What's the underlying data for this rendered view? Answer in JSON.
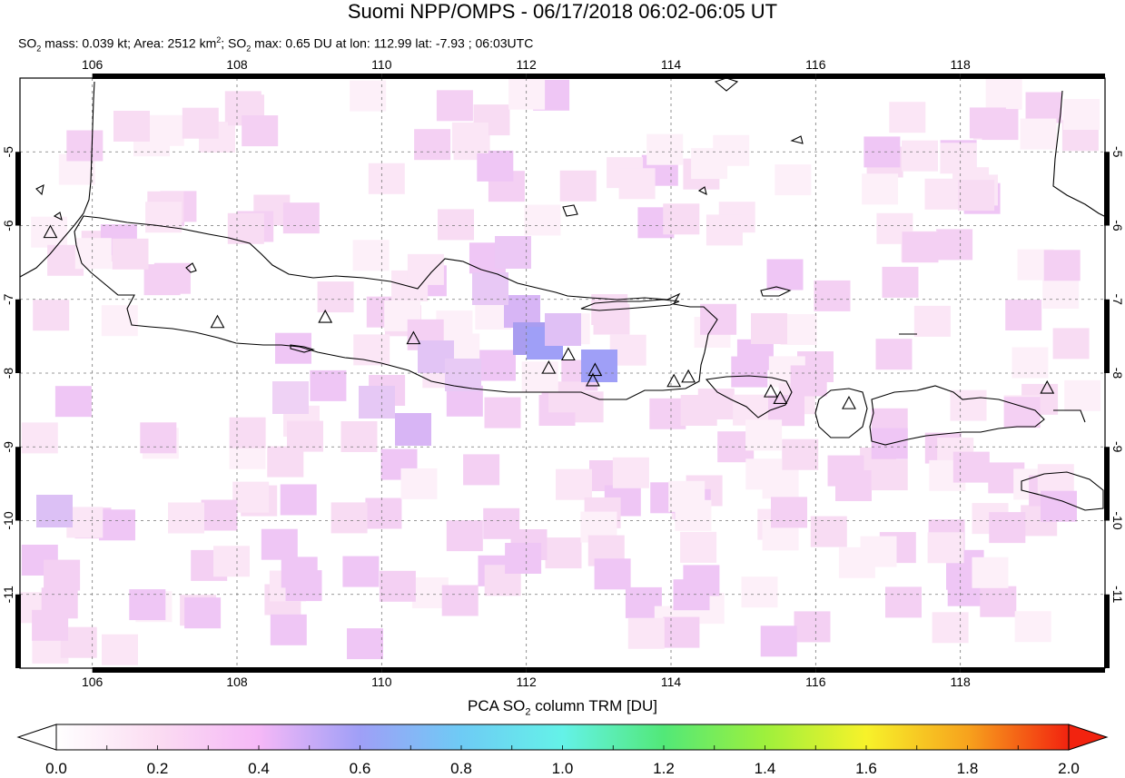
{
  "header": {
    "title": "Suomi NPP/OMPS - 06/17/2018 06:02-06:05 UT",
    "subtitle_parts": {
      "so2_1": "SO",
      "sub_1": "2",
      "mass": " mass: 0.039 kt; Area: 2512 km",
      "sup_1": "2",
      "sep": "; SO",
      "sub_2": "2",
      "max": " max: 0.65 DU at lon: 112.99 lat: -7.93 ; 06:03UTC"
    }
  },
  "map": {
    "lon_range": [
      105.0,
      120.0
    ],
    "lat_range": [
      -12.0,
      -4.0
    ],
    "lon_ticks": [
      "106",
      "108",
      "110",
      "112",
      "114",
      "116",
      "118"
    ],
    "lat_ticks": [
      "-5",
      "-6",
      "-7",
      "-8",
      "-9",
      "-10",
      "-11"
    ],
    "volcano_markers": [
      {
        "lon": 105.42,
        "lat": -6.1
      },
      {
        "lon": 107.73,
        "lat": -7.32
      },
      {
        "lon": 109.22,
        "lat": -7.25
      },
      {
        "lon": 110.44,
        "lat": -7.54
      },
      {
        "lon": 112.31,
        "lat": -7.94
      },
      {
        "lon": 112.58,
        "lat": -7.76
      },
      {
        "lon": 112.95,
        "lat": -7.97
      },
      {
        "lon": 112.92,
        "lat": -8.11
      },
      {
        "lon": 114.04,
        "lat": -8.12
      },
      {
        "lon": 114.24,
        "lat": -8.06
      },
      {
        "lon": 115.38,
        "lat": -8.26
      },
      {
        "lon": 115.51,
        "lat": -8.35
      },
      {
        "lon": 116.46,
        "lat": -8.42
      },
      {
        "lon": 119.2,
        "lat": -8.21
      }
    ]
  },
  "colorbar": {
    "title_prefix": "PCA SO",
    "title_sub": "2",
    "title_suffix": " column TRM [DU]",
    "min": 0.0,
    "max": 2.0,
    "tick_labels": [
      "0.0",
      "0.2",
      "0.4",
      "0.6",
      "0.8",
      "1.0",
      "1.2",
      "1.4",
      "1.6",
      "1.8",
      "2.0"
    ],
    "colors": [
      "#ffffff",
      "#fbdcf2",
      "#f5b8f7",
      "#9f9ff7",
      "#6ecbf5",
      "#64f2e8",
      "#52e878",
      "#9ef03c",
      "#f7f22a",
      "#f7a31d",
      "#f2230f"
    ]
  }
}
